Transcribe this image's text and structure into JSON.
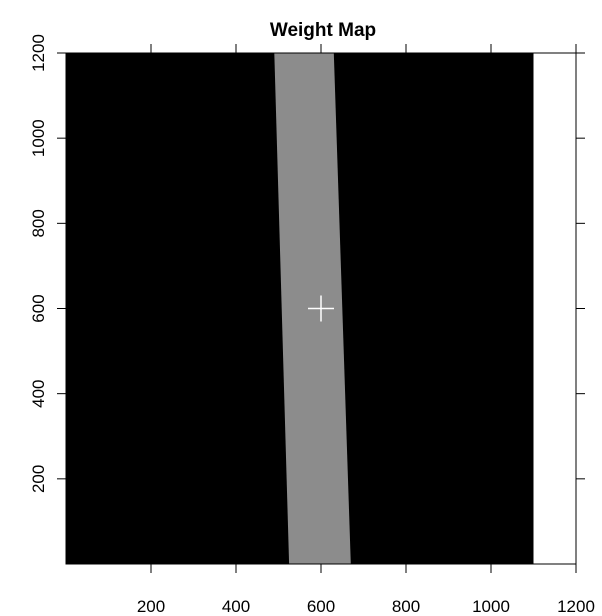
{
  "chart_data": {
    "type": "heatmap",
    "title": "Weight Map",
    "xlabel": "",
    "ylabel": "",
    "xlim": [
      0,
      1200
    ],
    "ylim": [
      0,
      1200
    ],
    "x_ticks": [
      200,
      400,
      600,
      800,
      1000,
      1200
    ],
    "y_ticks": [
      200,
      400,
      600,
      800,
      1000,
      1200
    ],
    "x_tick_labels": [
      "200",
      "400",
      "600",
      "800",
      "1000",
      "1200"
    ],
    "y_tick_labels": [
      "200",
      "400",
      "600",
      "800",
      "1000",
      "1200"
    ],
    "background_region": {
      "color": "#000000",
      "x_range": [
        0,
        1100
      ],
      "y_range": [
        0,
        1200
      ]
    },
    "empty_region": {
      "color": "#ffffff",
      "x_range": [
        1100,
        1200
      ],
      "y_range": [
        0,
        1200
      ]
    },
    "band": {
      "color": "#8c8c8c",
      "top_left": [
        490,
        1200
      ],
      "top_right": [
        630,
        1200
      ],
      "bottom_right": [
        670,
        0
      ],
      "bottom_left": [
        525,
        0
      ]
    },
    "marker": {
      "shape": "plus",
      "color": "#ffffff",
      "x": 600,
      "y": 600
    },
    "grid": false,
    "legend": "none"
  }
}
